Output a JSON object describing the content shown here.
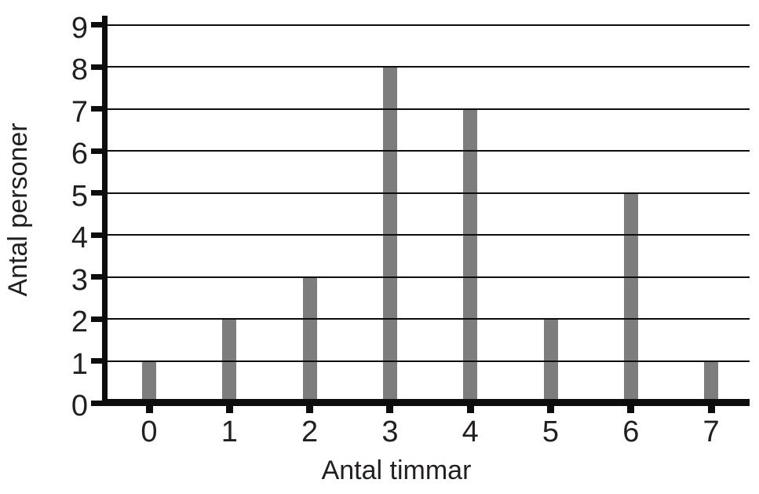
{
  "chart_data": {
    "type": "bar",
    "categories": [
      "0",
      "1",
      "2",
      "3",
      "4",
      "5",
      "6",
      "7"
    ],
    "values": [
      1,
      2,
      3,
      8,
      7,
      2,
      5,
      1
    ],
    "title": "",
    "xlabel": "Antal timmar",
    "ylabel": "Antal personer",
    "ylim": [
      0,
      9
    ],
    "yticks": [
      0,
      1,
      2,
      3,
      4,
      5,
      6,
      7,
      8,
      9
    ],
    "grid": true,
    "legend": "none",
    "bar_color": "#7d7d7d",
    "line_color": "#0d0d0d",
    "text_color": "#231f20",
    "background_color": "#ffffff"
  }
}
